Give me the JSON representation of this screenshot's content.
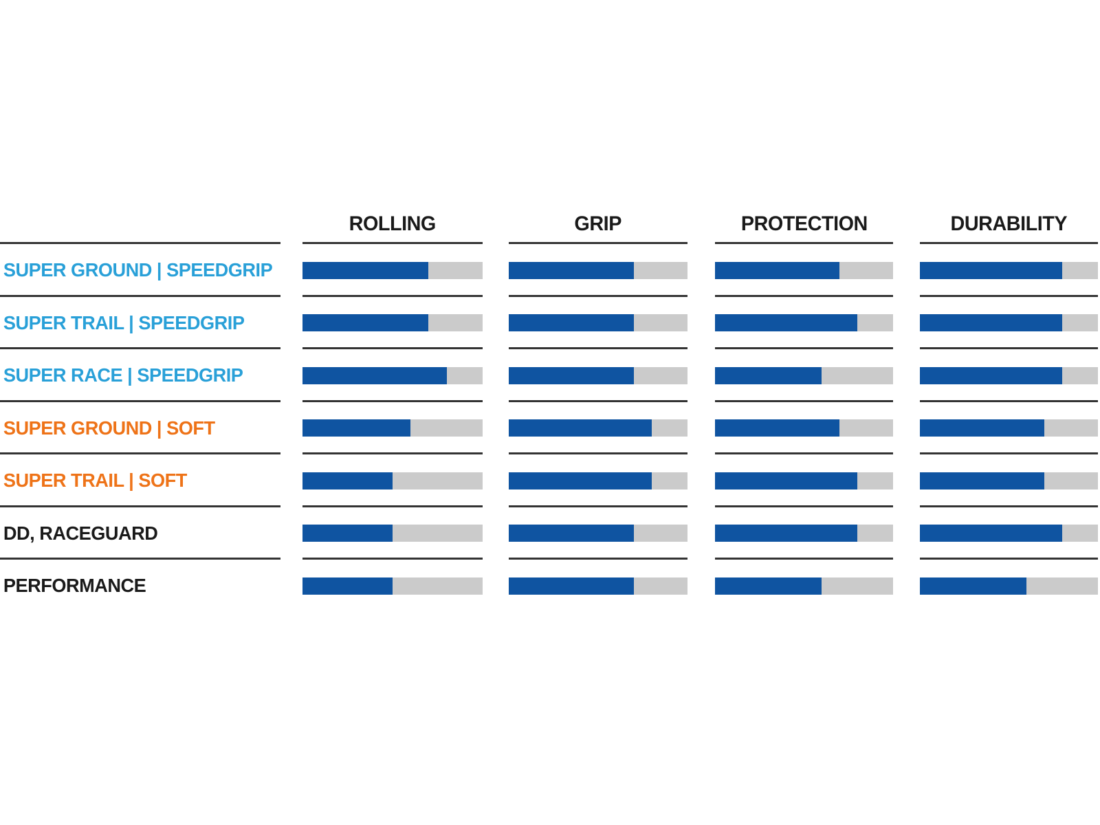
{
  "chart_data": {
    "type": "bar",
    "title": "",
    "orientation": "horizontal",
    "columns": [
      "ROLLING",
      "GRIP",
      "PROTECTION",
      "DURABILITY"
    ],
    "value_scale": "fraction of bar filled, 0 to 1",
    "rows": [
      {
        "label": "SUPER GROUND | SPEEDGRIP",
        "label_color": "#29A0D8",
        "values": {
          "rolling": 0.7,
          "grip": 0.7,
          "protection": 0.7,
          "durability": 0.8
        }
      },
      {
        "label": "SUPER TRAIL | SPEEDGRIP",
        "label_color": "#29A0D8",
        "values": {
          "rolling": 0.7,
          "grip": 0.7,
          "protection": 0.8,
          "durability": 0.8
        }
      },
      {
        "label": "SUPER RACE | SPEEDGRIP",
        "label_color": "#29A0D8",
        "values": {
          "rolling": 0.8,
          "grip": 0.7,
          "protection": 0.6,
          "durability": 0.8
        }
      },
      {
        "label": "SUPER GROUND | SOFT",
        "label_color": "#EE7318",
        "values": {
          "rolling": 0.6,
          "grip": 0.8,
          "protection": 0.7,
          "durability": 0.7
        }
      },
      {
        "label": "SUPER TRAIL | SOFT",
        "label_color": "#EE7318",
        "values": {
          "rolling": 0.5,
          "grip": 0.8,
          "protection": 0.8,
          "durability": 0.7
        }
      },
      {
        "label": "DD, RACEGUARD",
        "label_color": "#1A1A1A",
        "values": {
          "rolling": 0.5,
          "grip": 0.7,
          "protection": 0.8,
          "durability": 0.8
        }
      },
      {
        "label": "PERFORMANCE",
        "label_color": "#1A1A1A",
        "values": {
          "rolling": 0.5,
          "grip": 0.7,
          "protection": 0.6,
          "durability": 0.6
        }
      }
    ],
    "colors": {
      "bar_fill": "#0F54A1",
      "bar_track": "#CBCBCB",
      "divider_line": "#333333",
      "header_text": "#1A1A1A"
    },
    "legend_position": "none",
    "grid": "row divider lines only"
  }
}
